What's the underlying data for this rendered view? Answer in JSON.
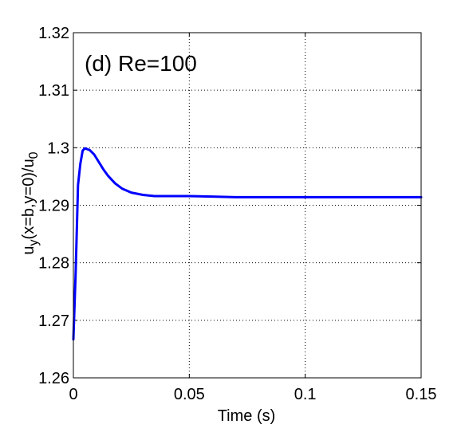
{
  "chart_data": {
    "type": "line",
    "annotation": "(d) Re=100",
    "xlabel": "Time (s)",
    "ylabel": {
      "parts": [
        "u",
        "y",
        "(x=b,y=0)/u",
        "0"
      ]
    },
    "xlim": [
      0,
      0.15
    ],
    "ylim": [
      1.26,
      1.32
    ],
    "xticks": [
      0,
      0.05,
      0.1,
      0.15
    ],
    "xtick_labels": [
      "0",
      "0.05",
      "0.1",
      "0.15"
    ],
    "yticks": [
      1.26,
      1.27,
      1.28,
      1.29,
      1.3,
      1.31,
      1.32
    ],
    "ytick_labels": [
      "1.26",
      "1.27",
      "1.28",
      "1.29",
      "1.3",
      "1.31",
      "1.32"
    ],
    "grid": true,
    "line_color": "#0000ff",
    "series": [
      {
        "x": [
          0.0,
          0.001,
          0.002,
          0.003,
          0.004,
          0.005,
          0.007,
          0.009,
          0.011,
          0.013,
          0.015,
          0.018,
          0.021,
          0.025,
          0.03,
          0.035,
          0.04,
          0.05,
          0.06,
          0.07,
          0.08,
          0.1,
          0.12,
          0.15
        ],
        "y": [
          1.2667,
          1.2785,
          1.2935,
          1.2972,
          1.2995,
          1.2999,
          1.2996,
          1.2988,
          1.2975,
          1.2962,
          1.2951,
          1.2938,
          1.2929,
          1.2922,
          1.2918,
          1.2916,
          1.2916,
          1.2916,
          1.2915,
          1.2914,
          1.2914,
          1.2914,
          1.2914,
          1.2914
        ]
      }
    ]
  }
}
